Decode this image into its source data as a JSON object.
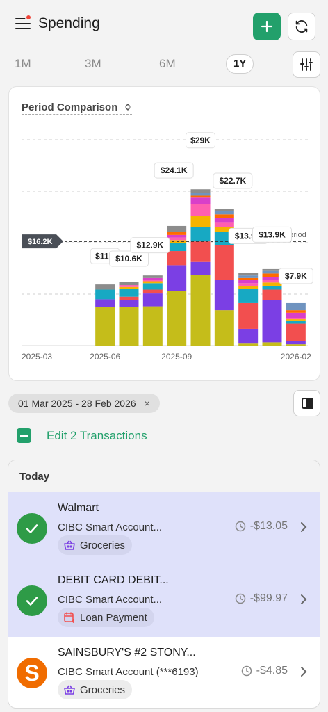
{
  "header": {
    "title": "Spending",
    "menu_icon": "hamburger-icon",
    "add_icon": "plus-icon",
    "refresh_icon": "refresh-icon"
  },
  "periods": [
    {
      "label": "1M",
      "active": false
    },
    {
      "label": "3M",
      "active": false
    },
    {
      "label": "6M",
      "active": false
    },
    {
      "label": "1Y",
      "active": true
    }
  ],
  "filter_icon": "sliders-icon",
  "chart": {
    "title": "Period Comparison"
  },
  "chart_data": {
    "type": "bar",
    "stacked": true,
    "title": "Period Comparison",
    "x_tick_labels": [
      "2025-03",
      "2025-06",
      "2025-09",
      "2026-02"
    ],
    "categories": [
      "2025-03",
      "2025-04",
      "2025-05",
      "2025-06",
      "2025-07",
      "2025-08",
      "2025-09",
      "2025-10",
      "2025-11",
      "2025-12",
      "2026-01",
      "2026-02"
    ],
    "totals": [
      null,
      null,
      null,
      11.0,
      10.6,
      12.9,
      24.1,
      29.0,
      22.7,
      13.9,
      13.9,
      7.9
    ],
    "data_labels": [
      "",
      "",
      "",
      "$11K",
      "$10.6K",
      "$12.9K",
      "$24.1K",
      "$29K",
      "$22.7K",
      "$13.9K",
      "$13.9K",
      "$7.9K"
    ],
    "unit": "K USD",
    "average": {
      "value": 16.2,
      "label": "$16.2K",
      "annotation": "Period"
    },
    "ylim": [
      0,
      32
    ],
    "gridlines": [
      8,
      16,
      24,
      32
    ],
    "series_colors": [
      "#c5bd1a",
      "#7b3fe4",
      "#f24f4f",
      "#17a9c3",
      "#f5b400",
      "#ff5fb0",
      "#d93fc9",
      "#ff6a00",
      "#6f93bf",
      "#8c8c8c"
    ],
    "stacks": [
      [],
      [],
      [],
      [
        6.0,
        1.2,
        0,
        1.5,
        0,
        0,
        0,
        0,
        0,
        0.8
      ],
      [
        6.0,
        1.1,
        0.5,
        1.2,
        0.3,
        0.3,
        0,
        0,
        0,
        0.5
      ],
      [
        6.1,
        2.0,
        0.6,
        1.0,
        0.3,
        0.2,
        0.3,
        0,
        0,
        0.4
      ],
      [
        8.5,
        4.0,
        2.2,
        1.3,
        0.4,
        0.4,
        0.4,
        0.5,
        0,
        0.9
      ],
      [
        11.0,
        2.0,
        3.2,
        2.2,
        1.8,
        1.8,
        1.0,
        0.3,
        0.4,
        0.6
      ],
      [
        5.5,
        4.7,
        5.4,
        2.1,
        0.7,
        0.8,
        0.6,
        0.6,
        0.5,
        0.3
      ],
      [
        0.3,
        2.3,
        4.0,
        2.2,
        0.5,
        0.4,
        0.5,
        0.3,
        0.4,
        0.4
      ],
      [
        0.5,
        6.6,
        1.6,
        0.6,
        0.5,
        0.4,
        0.4,
        0.6,
        0.4,
        0.3
      ],
      [
        0.2,
        0.5,
        2.7,
        0.5,
        0.2,
        0.2,
        0.8,
        0.4,
        1.1,
        0
      ]
    ],
    "gridlines_on": true,
    "legend": "none"
  },
  "date_range": {
    "label": "01 Mar 2025 - 28 Feb 2026",
    "clear": "×"
  },
  "sidebar_icon": "sidebar-panel-icon",
  "edit": {
    "label": "Edit 2 Transactions"
  },
  "transactions": {
    "day": "Today",
    "items": [
      {
        "name": "Walmart",
        "account": "CIBC Smart Account...",
        "category": "Groceries",
        "category_icon": "basket-icon",
        "amount": "-$13.05",
        "selected": true
      },
      {
        "name": "DEBIT CARD DEBIT...",
        "account": "CIBC Smart Account...",
        "category": "Loan Payment",
        "category_icon": "calendar-dollar-icon",
        "amount": "-$99.97",
        "selected": true
      },
      {
        "name": "SAINSBURY'S #2 STONY...",
        "account": "CIBC Smart Account (***6193)",
        "category": "Groceries",
        "category_icon": "basket-icon",
        "amount": "-$4.85",
        "selected": false,
        "logo_letter": "S"
      }
    ]
  }
}
